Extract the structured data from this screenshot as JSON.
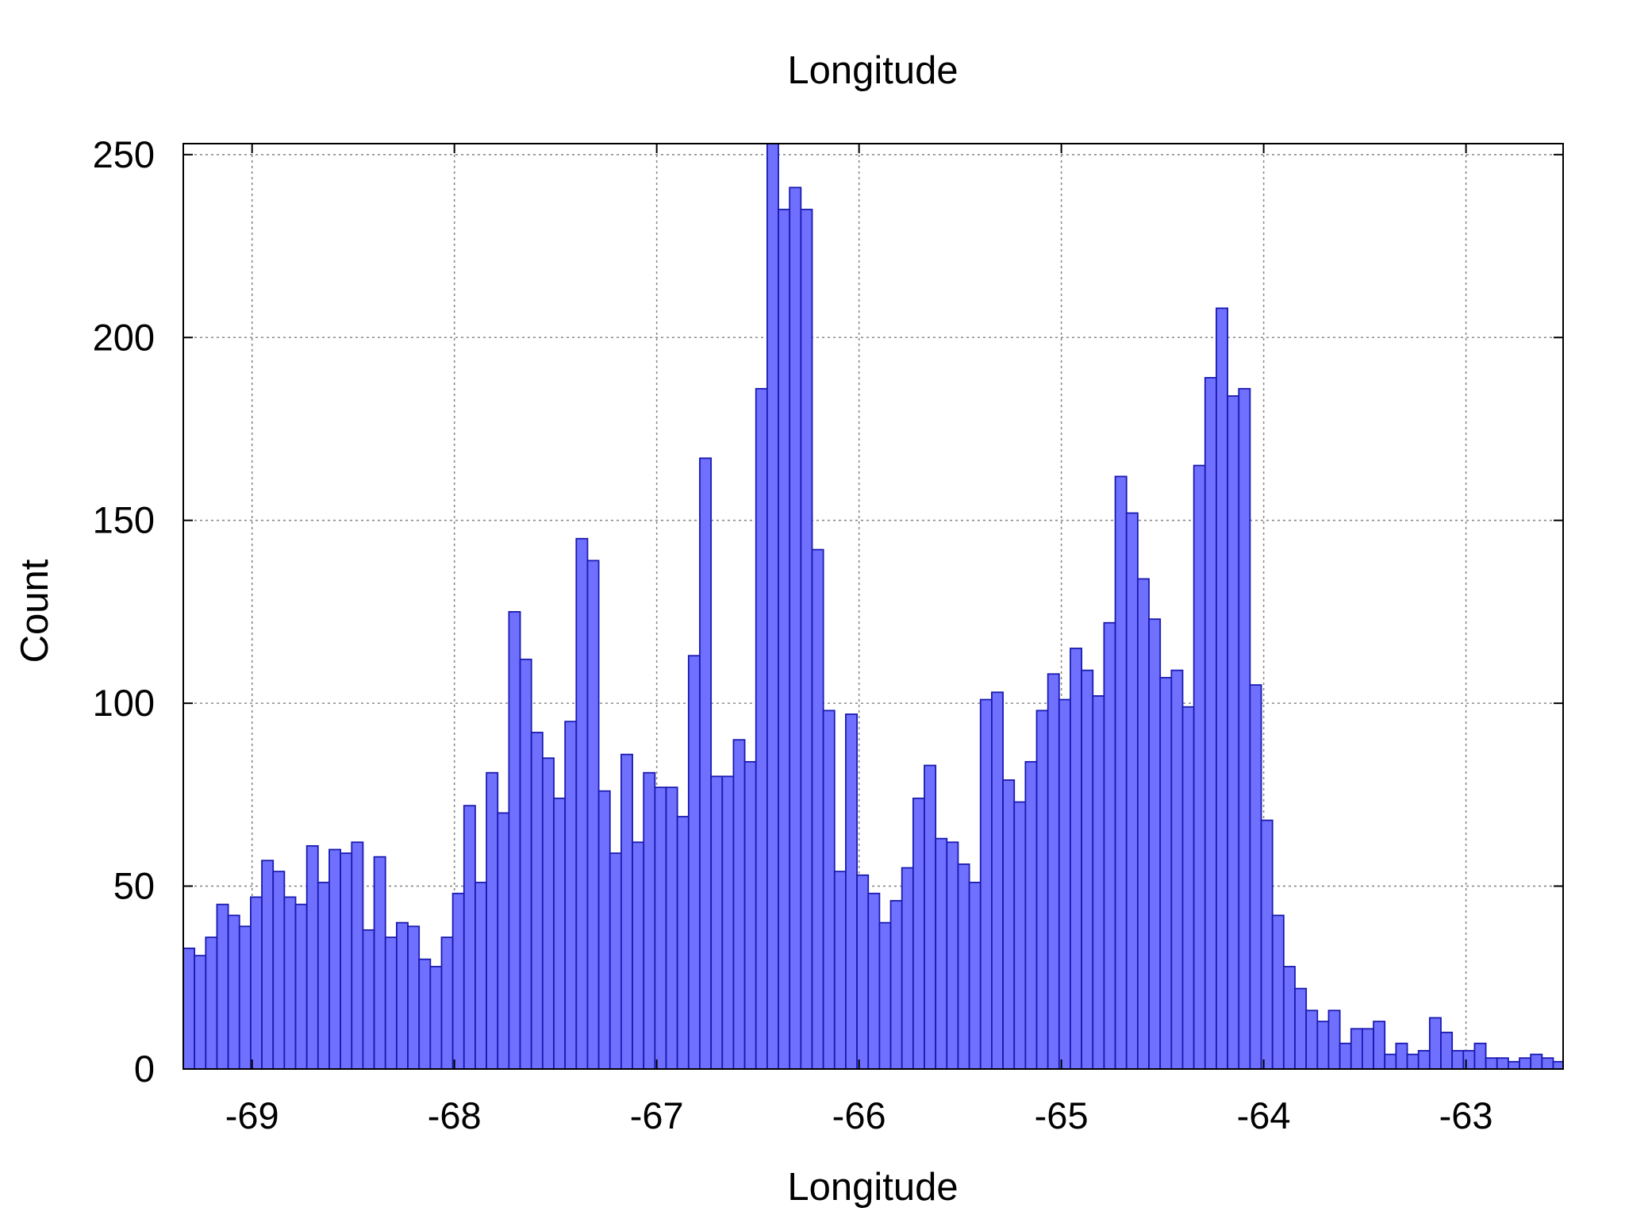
{
  "chart_data": {
    "type": "bar",
    "title": "Longitude",
    "xlabel": "Longitude",
    "ylabel": "Count",
    "xlim": [
      -69.34,
      -62.52
    ],
    "ylim": [
      0,
      253
    ],
    "xticks": [
      -69,
      -68,
      -67,
      -66,
      -65,
      -64,
      -63
    ],
    "yticks": [
      0,
      50,
      100,
      150,
      200,
      250
    ],
    "grid": true,
    "bar_color": "#7070ff",
    "bar_edge_color": "#1a1ab0",
    "bin_width": 0.0555,
    "bin_start": -69.34,
    "values": [
      33,
      31,
      36,
      45,
      42,
      39,
      47,
      57,
      54,
      47,
      45,
      61,
      51,
      60,
      59,
      62,
      38,
      58,
      36,
      40,
      39,
      30,
      28,
      36,
      48,
      72,
      51,
      81,
      70,
      125,
      112,
      92,
      85,
      74,
      95,
      145,
      139,
      76,
      59,
      86,
      62,
      81,
      77,
      77,
      69,
      113,
      167,
      80,
      80,
      90,
      84,
      186,
      255,
      235,
      241,
      235,
      142,
      98,
      54,
      97,
      53,
      48,
      40,
      46,
      55,
      74,
      83,
      63,
      62,
      56,
      51,
      101,
      103,
      79,
      73,
      84,
      98,
      108,
      101,
      115,
      109,
      102,
      122,
      162,
      152,
      134,
      123,
      107,
      109,
      99,
      165,
      189,
      208,
      184,
      186,
      105,
      68,
      42,
      28,
      22,
      16,
      13,
      16,
      7,
      11,
      11,
      13,
      4,
      7,
      4,
      5,
      14,
      10,
      5,
      5,
      7,
      3,
      3,
      2,
      3,
      4,
      3,
      2,
      4,
      3
    ]
  }
}
